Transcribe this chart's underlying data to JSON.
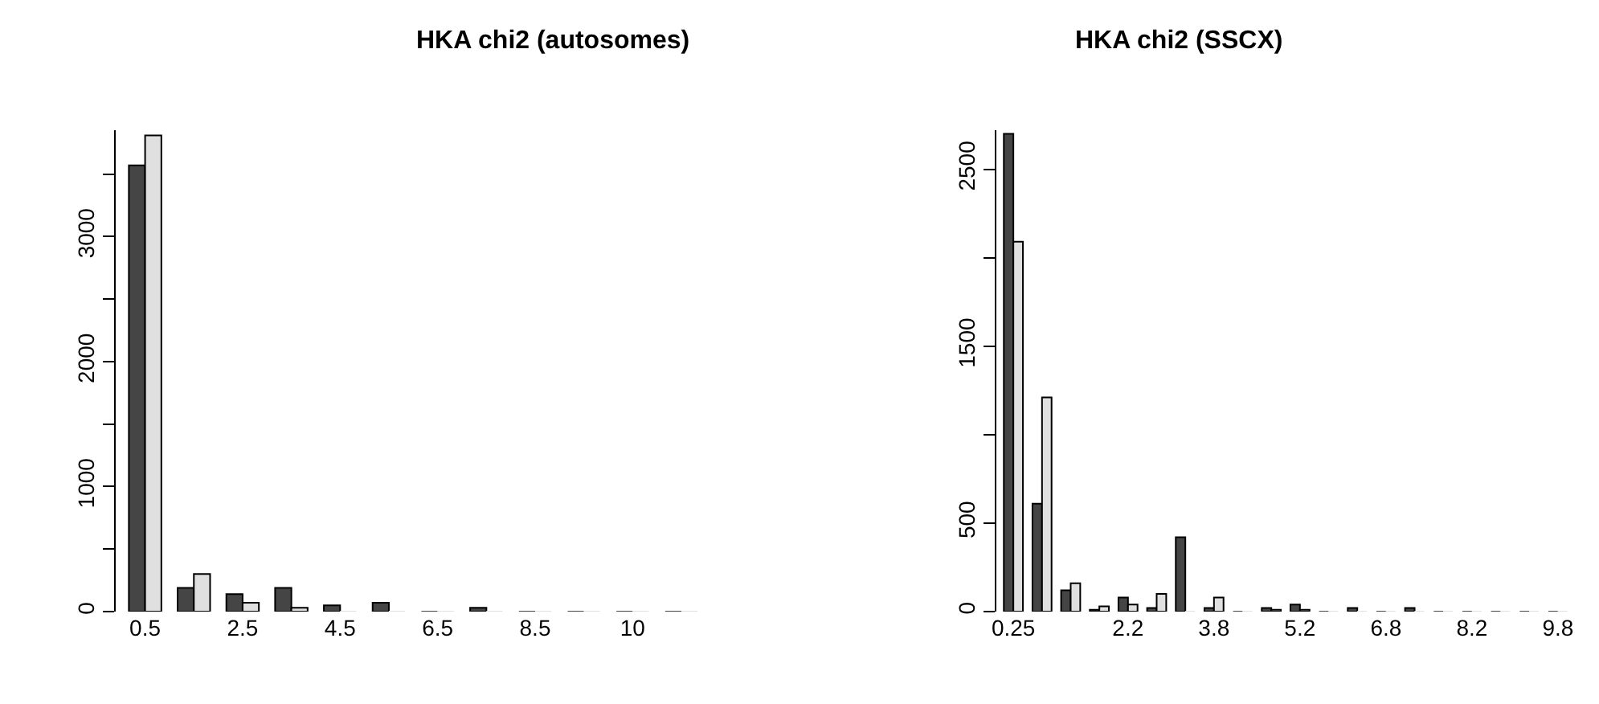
{
  "chart_data": [
    {
      "type": "bar",
      "title": "HKA chi2 (autosomes)",
      "categories": [
        "0.5",
        null,
        "2.5",
        null,
        "4.5",
        null,
        "6.5",
        null,
        "8.5",
        null,
        "10",
        null
      ],
      "series": [
        {
          "color": "#454545",
          "values": [
            3570,
            190,
            140,
            190,
            50,
            70,
            0,
            30,
            0,
            0,
            0,
            0
          ]
        },
        {
          "color": "#e0e0e0",
          "values": [
            3810,
            300,
            70,
            30,
            0,
            0,
            0,
            0,
            0,
            0,
            0,
            0
          ]
        }
      ],
      "ylim": [
        0,
        3850
      ],
      "yticks": [
        0,
        {
          "value": 500,
          "label": null
        },
        1000,
        {
          "value": 1500,
          "label": null
        },
        2000,
        {
          "value": 2500,
          "label": null
        },
        3000,
        {
          "value": 3500,
          "label": null
        }
      ]
    },
    {
      "type": "bar",
      "title": "HKA chi2 (SSCX)",
      "categories": [
        "0.25",
        null,
        null,
        null,
        "2.2",
        null,
        null,
        "3.8",
        null,
        null,
        "5.2",
        null,
        null,
        "6.8",
        null,
        null,
        "8.2",
        null,
        null,
        "9.8"
      ],
      "series": [
        {
          "color": "#454545",
          "values": [
            2700,
            610,
            120,
            10,
            80,
            20,
            420,
            20,
            0,
            20,
            40,
            0,
            20,
            0,
            20,
            0,
            0,
            0,
            0,
            0
          ]
        },
        {
          "color": "#e0e0e0",
          "values": [
            2090,
            1210,
            160,
            30,
            40,
            100,
            0,
            80,
            0,
            10,
            10,
            0,
            0,
            0,
            0,
            0,
            0,
            0,
            0,
            0
          ]
        }
      ],
      "ylim": [
        0,
        2720
      ],
      "yticks": [
        0,
        500,
        {
          "value": 1000,
          "label": null
        },
        1500,
        {
          "value": 2000,
          "label": null
        },
        2500
      ]
    }
  ]
}
